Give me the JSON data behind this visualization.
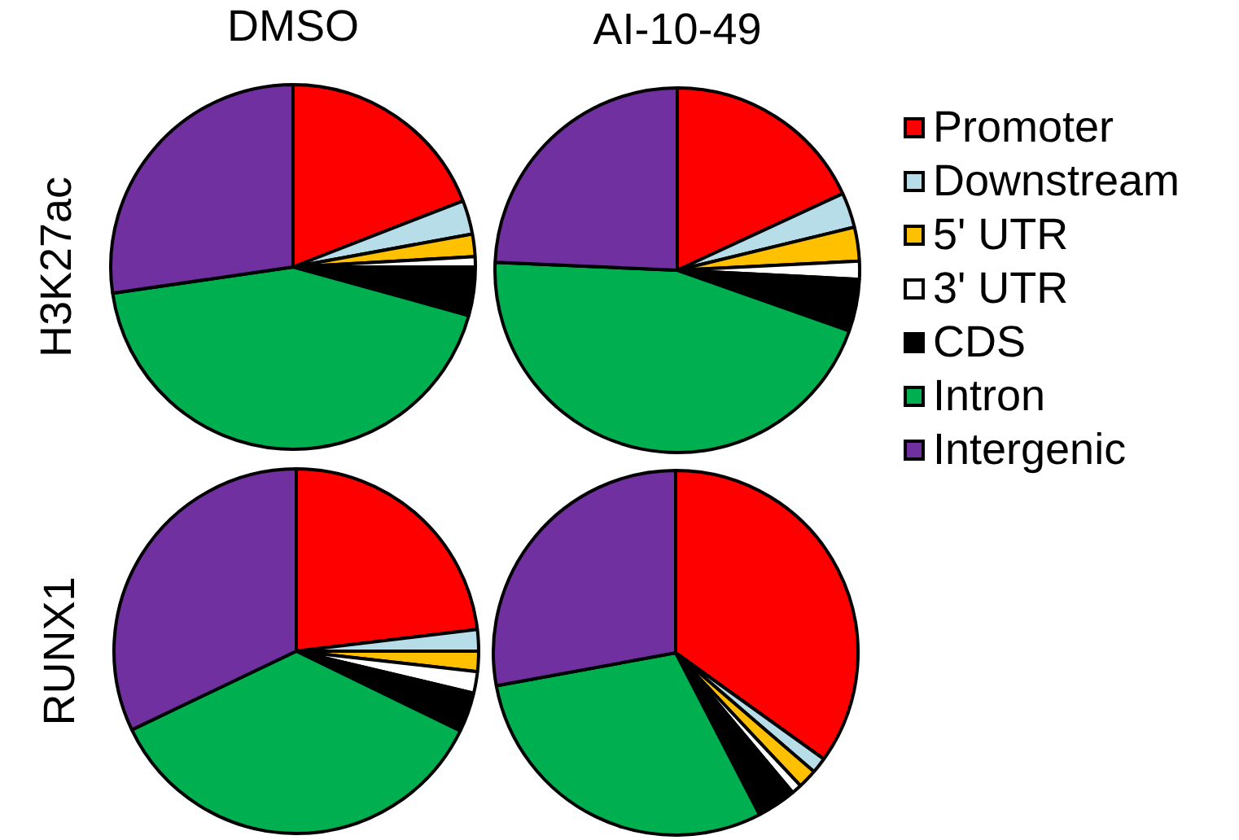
{
  "chart_data": [
    {
      "type": "pie",
      "title": "DMSO",
      "ylabel": "H3K27ac",
      "categories": [
        "Promoter",
        "Downstream",
        "5' UTR",
        "3' UTR",
        "CDS",
        "Intron",
        "Intergenic"
      ],
      "values": [
        19.1,
        3,
        2,
        0.9,
        4.3,
        43.4,
        27.3
      ],
      "colors": [
        "#ff0000",
        "#b7dde8",
        "#ffc000",
        "#ffffff",
        "#000000",
        "#00b050",
        "#7030a0"
      ],
      "legend": "right"
    },
    {
      "type": "pie",
      "title": "AI-10-49",
      "categories": [
        null,
        null,
        null,
        null,
        null,
        null,
        null
      ],
      "values": [
        18.1,
        3.1,
        3,
        1.6,
        4.6,
        45.3,
        24.3
      ],
      "colors": [
        "#ff0000",
        "#b7dde8",
        "#ffc000",
        "#ffffff",
        "#000000",
        "#00b050",
        "#7030a0"
      ]
    },
    {
      "type": "pie",
      "ylabel": "RUNX1",
      "categories": [
        null,
        null,
        null,
        null,
        null,
        null,
        null
      ],
      "values": [
        23.1,
        1.9,
        1.8,
        1.9,
        3.5,
        35.7,
        32.1
      ],
      "colors": [
        "#ff0000",
        "#b7dde8",
        "#ffc000",
        "#ffffff",
        "#000000",
        "#00b050",
        "#7030a0"
      ]
    },
    {
      "type": "pie",
      "categories": [
        null,
        null,
        null,
        null,
        null,
        null,
        null
      ],
      "values": [
        34.9,
        1.4,
        1.7,
        0.9,
        3.5,
        29.7,
        27.9
      ],
      "colors": [
        "#ff0000",
        "#b7dde8",
        "#ffc000",
        "#ffffff",
        "#000000",
        "#00b050",
        "#7030a0"
      ]
    }
  ]
}
